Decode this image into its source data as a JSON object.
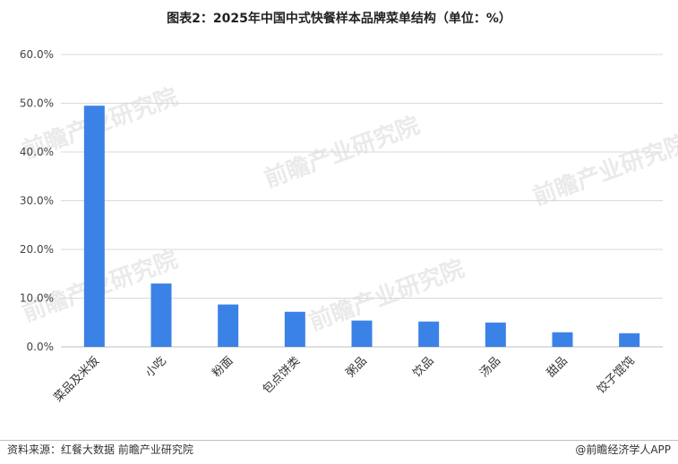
{
  "chart_data": {
    "type": "bar",
    "title": "图表2：2025年中国中式快餐样本品牌菜单结构（单位：%）",
    "categories": [
      "菜品及米饭",
      "小吃",
      "粉面",
      "包点饼类",
      "粥品",
      "饮品",
      "汤品",
      "甜品",
      "饺子馄饨"
    ],
    "values": [
      49.5,
      13.0,
      8.7,
      7.2,
      5.4,
      5.2,
      5.0,
      3.0,
      2.8
    ],
    "yticks": [
      "0.0%",
      "10.0%",
      "20.0%",
      "30.0%",
      "40.0%",
      "50.0%",
      "60.0%"
    ],
    "ylim": [
      0,
      60
    ],
    "grid": true,
    "bar_color": "#3b82e6"
  },
  "watermark_text": "前瞻产业研究院",
  "footer": {
    "source": "资料来源：红餐大数据 前瞻产业研究院",
    "brand": "@前瞻经济学人APP"
  }
}
